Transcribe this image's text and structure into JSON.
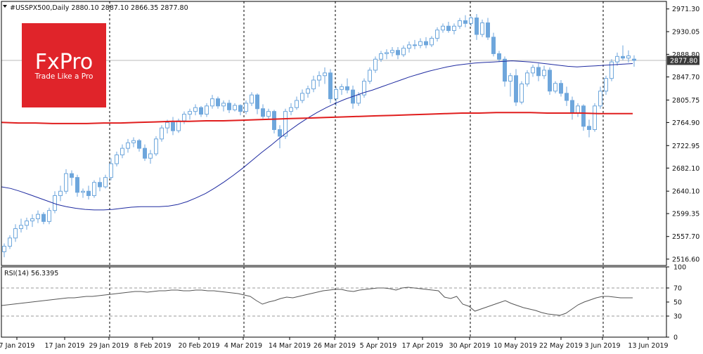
{
  "header": {
    "symbol_line": "#USSPX500,Daily  2880.10 2887.10 2866.35 2877.80"
  },
  "logo": {
    "brand": "FxPro",
    "tagline": "Trade Like a Pro",
    "color": "#e0242a"
  },
  "colors": {
    "candle": "#6ea6dc",
    "ma_fast": "#1e2aa0",
    "ma_slow": "#e01e1e",
    "rsi_line": "#555555",
    "price_tag_bg": "#3a3a3a"
  },
  "chart_data": [
    {
      "type": "candlestick",
      "title": "#USSPX500,Daily",
      "ohlc_last": {
        "open": 2880.1,
        "high": 2887.1,
        "low": 2866.35,
        "close": 2877.8
      },
      "current_price_label": "2877.80",
      "ylim": [
        2505,
        2985
      ],
      "y_ticks": [
        "2971.30",
        "2930.05",
        "2888.80",
        "2847.70",
        "2805.75",
        "2764.90",
        "2722.95",
        "2682.10",
        "2640.10",
        "2599.35",
        "2557.70",
        "2516.60"
      ],
      "x_ticks": [
        "7 Jan 2019",
        "17 Jan 2019",
        "29 Jan 2019",
        "8 Feb 2019",
        "20 Feb 2019",
        "4 Mar 2019",
        "14 Mar 2019",
        "26 Mar 2019",
        "5 Apr 2019",
        "17 Apr 2019",
        "30 Apr 2019",
        "10 May 2019",
        "22 May 2019",
        "3 Jun 2019",
        "13 Jun 2019"
      ],
      "period_separators": [
        "29 Jan 2019",
        "4 Mar 2019",
        "26 Mar 2019",
        "30 Apr 2019",
        "3 Jun 2019"
      ],
      "ohlc": [
        [
          2530,
          2545,
          2520,
          2540
        ],
        [
          2540,
          2560,
          2535,
          2555
        ],
        [
          2555,
          2580,
          2548,
          2572
        ],
        [
          2572,
          2590,
          2565,
          2578
        ],
        [
          2578,
          2592,
          2570,
          2586
        ],
        [
          2586,
          2598,
          2575,
          2590
        ],
        [
          2590,
          2605,
          2582,
          2598
        ],
        [
          2598,
          2602,
          2580,
          2585
        ],
        [
          2585,
          2610,
          2580,
          2605
        ],
        [
          2605,
          2640,
          2600,
          2632
        ],
        [
          2632,
          2650,
          2622,
          2640
        ],
        [
          2640,
          2680,
          2635,
          2672
        ],
        [
          2672,
          2678,
          2650,
          2665
        ],
        [
          2665,
          2670,
          2630,
          2638
        ],
        [
          2638,
          2645,
          2628,
          2640
        ],
        [
          2640,
          2650,
          2625,
          2632
        ],
        [
          2632,
          2660,
          2628,
          2656
        ],
        [
          2656,
          2665,
          2640,
          2648
        ],
        [
          2648,
          2670,
          2645,
          2665
        ],
        [
          2665,
          2700,
          2660,
          2690
        ],
        [
          2690,
          2712,
          2685,
          2706
        ],
        [
          2706,
          2725,
          2700,
          2718
        ],
        [
          2718,
          2735,
          2710,
          2728
        ],
        [
          2728,
          2738,
          2720,
          2732
        ],
        [
          2732,
          2735,
          2712,
          2718
        ],
        [
          2718,
          2725,
          2695,
          2700
        ],
        [
          2700,
          2715,
          2690,
          2708
        ],
        [
          2708,
          2740,
          2704,
          2735
        ],
        [
          2735,
          2760,
          2730,
          2755
        ],
        [
          2755,
          2770,
          2745,
          2765
        ],
        [
          2765,
          2775,
          2742,
          2750
        ],
        [
          2750,
          2772,
          2746,
          2768
        ],
        [
          2768,
          2785,
          2762,
          2780
        ],
        [
          2780,
          2790,
          2770,
          2785
        ],
        [
          2785,
          2798,
          2778,
          2792
        ],
        [
          2792,
          2795,
          2775,
          2780
        ],
        [
          2780,
          2800,
          2775,
          2795
        ],
        [
          2795,
          2815,
          2790,
          2808
        ],
        [
          2808,
          2812,
          2790,
          2795
        ],
        [
          2795,
          2805,
          2785,
          2800
        ],
        [
          2800,
          2806,
          2782,
          2788
        ],
        [
          2788,
          2800,
          2785,
          2796
        ],
        [
          2796,
          2798,
          2778,
          2785
        ],
        [
          2785,
          2805,
          2780,
          2800
        ],
        [
          2800,
          2820,
          2795,
          2815
        ],
        [
          2815,
          2818,
          2780,
          2790
        ],
        [
          2790,
          2798,
          2772,
          2776
        ],
        [
          2776,
          2790,
          2770,
          2785
        ],
        [
          2785,
          2788,
          2745,
          2752
        ],
        [
          2752,
          2760,
          2718,
          2740
        ],
        [
          2740,
          2790,
          2735,
          2785
        ],
        [
          2785,
          2800,
          2778,
          2792
        ],
        [
          2792,
          2812,
          2788,
          2805
        ],
        [
          2805,
          2825,
          2800,
          2818
        ],
        [
          2818,
          2832,
          2810,
          2826
        ],
        [
          2826,
          2850,
          2820,
          2842
        ],
        [
          2842,
          2858,
          2830,
          2850
        ],
        [
          2850,
          2865,
          2835,
          2855
        ],
        [
          2855,
          2862,
          2800,
          2808
        ],
        [
          2808,
          2830,
          2795,
          2825
        ],
        [
          2825,
          2835,
          2815,
          2830
        ],
        [
          2830,
          2845,
          2818,
          2824
        ],
        [
          2824,
          2832,
          2790,
          2800
        ],
        [
          2800,
          2820,
          2795,
          2815
        ],
        [
          2815,
          2845,
          2810,
          2840
        ],
        [
          2840,
          2865,
          2835,
          2860
        ],
        [
          2860,
          2885,
          2855,
          2880
        ],
        [
          2880,
          2895,
          2875,
          2890
        ],
        [
          2890,
          2898,
          2880,
          2892
        ],
        [
          2892,
          2902,
          2885,
          2896
        ],
        [
          2896,
          2902,
          2880,
          2888
        ],
        [
          2888,
          2905,
          2884,
          2900
        ],
        [
          2900,
          2912,
          2892,
          2906
        ],
        [
          2906,
          2915,
          2898,
          2905
        ],
        [
          2905,
          2918,
          2900,
          2912
        ],
        [
          2912,
          2920,
          2900,
          2906
        ],
        [
          2906,
          2922,
          2902,
          2918
        ],
        [
          2918,
          2938,
          2912,
          2933
        ],
        [
          2933,
          2945,
          2928,
          2940
        ],
        [
          2940,
          2948,
          2928,
          2932
        ],
        [
          2932,
          2945,
          2925,
          2940
        ],
        [
          2940,
          2955,
          2935,
          2950
        ],
        [
          2950,
          2960,
          2938,
          2945
        ],
        [
          2945,
          2958,
          2940,
          2955
        ],
        [
          2955,
          2962,
          2915,
          2925
        ],
        [
          2925,
          2952,
          2920,
          2946
        ],
        [
          2946,
          2955,
          2915,
          2920
        ],
        [
          2920,
          2928,
          2885,
          2890
        ],
        [
          2890,
          2895,
          2875,
          2880
        ],
        [
          2880,
          2885,
          2830,
          2840
        ],
        [
          2840,
          2855,
          2812,
          2850
        ],
        [
          2850,
          2862,
          2795,
          2802
        ],
        [
          2802,
          2840,
          2798,
          2835
        ],
        [
          2835,
          2860,
          2830,
          2855
        ],
        [
          2855,
          2870,
          2848,
          2865
        ],
        [
          2865,
          2872,
          2840,
          2850
        ],
        [
          2850,
          2868,
          2844,
          2860
        ],
        [
          2860,
          2865,
          2815,
          2822
        ],
        [
          2822,
          2840,
          2818,
          2836
        ],
        [
          2836,
          2842,
          2812,
          2818
        ],
        [
          2818,
          2830,
          2795,
          2805
        ],
        [
          2805,
          2812,
          2770,
          2782
        ],
        [
          2782,
          2800,
          2775,
          2795
        ],
        [
          2795,
          2798,
          2750,
          2758
        ],
        [
          2758,
          2770,
          2738,
          2752
        ],
        [
          2752,
          2800,
          2748,
          2795
        ],
        [
          2795,
          2830,
          2790,
          2822
        ],
        [
          2822,
          2850,
          2815,
          2845
        ],
        [
          2845,
          2880,
          2840,
          2875
        ],
        [
          2875,
          2892,
          2868,
          2885
        ],
        [
          2885,
          2905,
          2878,
          2882
        ],
        [
          2882,
          2896,
          2874,
          2886
        ],
        [
          2880.1,
          2887.1,
          2866.35,
          2877.8
        ]
      ],
      "series": [
        {
          "type": "line",
          "values": [
            2648,
            2645,
            2640,
            2634,
            2628,
            2622,
            2616,
            2612,
            2609,
            2607,
            2606,
            2606,
            2607,
            2609,
            2611,
            2612,
            2612,
            2612,
            2613,
            2616,
            2621,
            2628,
            2636,
            2646,
            2657,
            2669,
            2682,
            2696,
            2710,
            2723,
            2737,
            2750,
            2762,
            2773,
            2783,
            2792,
            2800,
            2807,
            2813,
            2819,
            2824,
            2830,
            2836,
            2842,
            2848,
            2853,
            2858,
            2862,
            2866,
            2869,
            2871,
            2873,
            2874,
            2875,
            2876,
            2877,
            2876,
            2875,
            2873,
            2871,
            2869,
            2867,
            2866,
            2867,
            2868,
            2869,
            2870,
            2871,
            2872
          ]
        },
        {
          "type": "line",
          "values": [
            2765,
            2764,
            2764,
            2763,
            2763,
            2763,
            2764,
            2764,
            2765,
            2766,
            2767,
            2767,
            2768,
            2768,
            2769,
            2770,
            2771,
            2772,
            2773,
            2774,
            2775,
            2776,
            2777,
            2778,
            2779,
            2780,
            2781,
            2782,
            2782,
            2783,
            2783,
            2783,
            2782,
            2782,
            2782,
            2781,
            2781,
            2781
          ]
        }
      ]
    },
    {
      "type": "line",
      "title": "RSI(14) 56.3395",
      "ylim": [
        0,
        100
      ],
      "y_ticks": [
        "100",
        "70",
        "50",
        "30",
        "0"
      ],
      "levels": [
        70,
        30
      ],
      "values": [
        45,
        46,
        47,
        48,
        49,
        50,
        51,
        52,
        53,
        54,
        55,
        56,
        56,
        57,
        58,
        58,
        59,
        60,
        61,
        62,
        63,
        64,
        65,
        65,
        64,
        65,
        66,
        66,
        67,
        67,
        66,
        66,
        67,
        67,
        66,
        66,
        65,
        64,
        63,
        62,
        60,
        58,
        52,
        47,
        50,
        52,
        55,
        57,
        56,
        58,
        60,
        62,
        64,
        66,
        67,
        68,
        68,
        66,
        65,
        67,
        68,
        69,
        70,
        70,
        69,
        67,
        70,
        71,
        70,
        69,
        68,
        67,
        66,
        57,
        55,
        58,
        47,
        44,
        37,
        40,
        43,
        46,
        49,
        52,
        48,
        45,
        42,
        40,
        38,
        35,
        33,
        32,
        31,
        34,
        40,
        46,
        50,
        53,
        56,
        58,
        58,
        57,
        56,
        56,
        56
      ]
    }
  ]
}
